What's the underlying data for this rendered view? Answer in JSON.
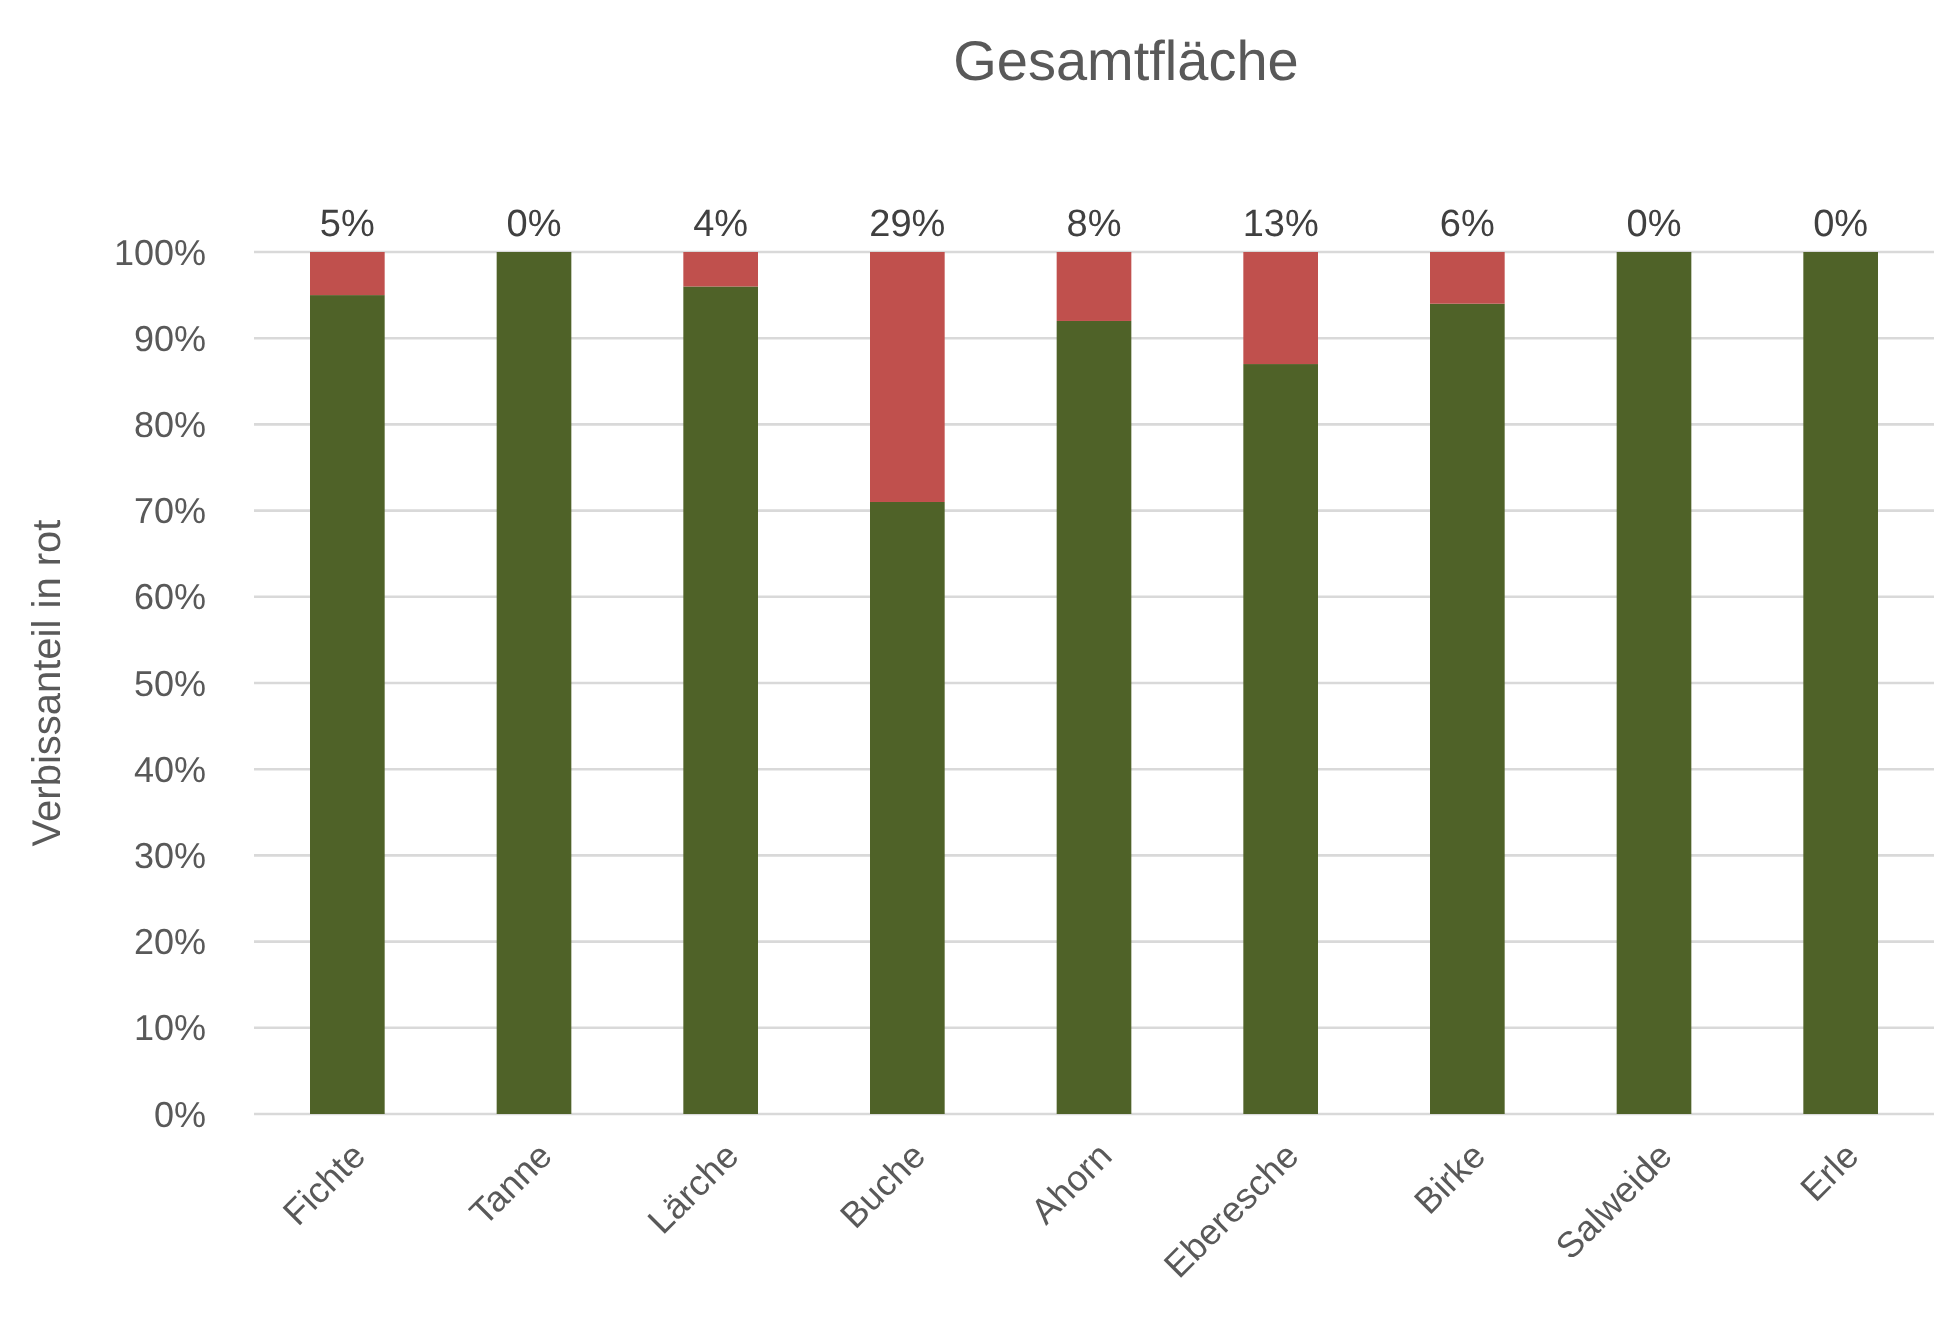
{
  "chart_data": {
    "type": "bar",
    "title": "Gesamtfläche",
    "ylabel": "Verbissanteil in rot",
    "categories": [
      "Fichte",
      "Tanne",
      "Lärche",
      "Buche",
      "Ahorn",
      "Eberesche",
      "Birke",
      "Salweide",
      "Erle"
    ],
    "stacked": true,
    "series": [
      {
        "color": "#4f6228",
        "values": [
          95,
          100,
          96,
          71,
          92,
          87,
          94,
          100,
          100
        ]
      },
      {
        "color": "#c0504d",
        "values": [
          5,
          0,
          4,
          29,
          8,
          13,
          6,
          0,
          0
        ],
        "value_labels": [
          "5%",
          "0%",
          "4%",
          "29%",
          "8%",
          "13%",
          "6%",
          "0%",
          "0%"
        ]
      }
    ],
    "ylim": [
      0,
      100
    ],
    "yticks": [
      {
        "value": 0,
        "label": "0%"
      },
      {
        "value": 10,
        "label": "10%"
      },
      {
        "value": 20,
        "label": "20%"
      },
      {
        "value": 30,
        "label": "30%"
      },
      {
        "value": 40,
        "label": "40%"
      },
      {
        "value": 50,
        "label": "50%"
      },
      {
        "value": 60,
        "label": "60%"
      },
      {
        "value": 70,
        "label": "70%"
      },
      {
        "value": 80,
        "label": "80%"
      },
      {
        "value": 90,
        "label": "90%"
      },
      {
        "value": 100,
        "label": "100%"
      }
    ],
    "grid": "y"
  }
}
